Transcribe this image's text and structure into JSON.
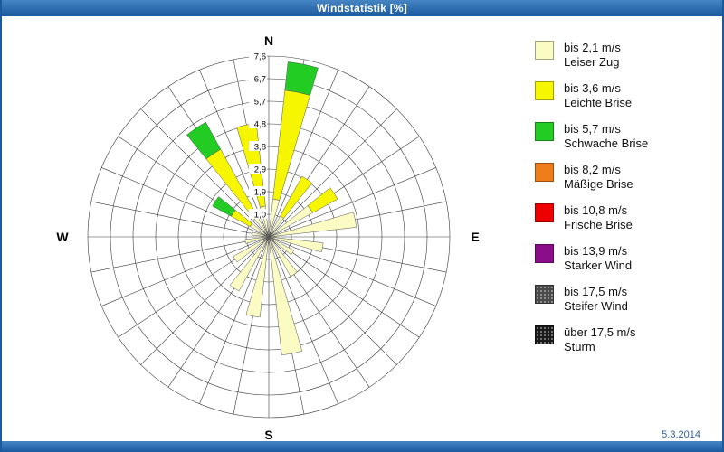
{
  "window": {
    "title": "Windstatistik [%]",
    "date": "5.3.2014"
  },
  "colors": {
    "frame_blue": "#1B5A9E",
    "date_text": "#2F5F9C",
    "grid_line": "#3A3A3A",
    "plot_background": "#FFFFFF"
  },
  "compass": {
    "north": "N",
    "south": "S",
    "west": "W",
    "east": "E"
  },
  "chart_data": {
    "type": "bar",
    "subtype": "windrose-stacked-polar",
    "unit": "%",
    "title": "Windstatistik [%]",
    "max_value": 7.6,
    "ring_values": [
      0.95,
      1.9,
      2.85,
      3.8,
      4.75,
      5.7,
      6.65,
      7.6
    ],
    "ring_labels": [
      "1,0",
      "1,9",
      "2,9",
      "3,8",
      "4,8",
      "5,7",
      "6,7",
      "7,6"
    ],
    "spoke_count": 32,
    "petal_half_width_deg": 5,
    "legend_position": "right",
    "speed_classes": [
      {
        "label": "bis 2,1 m/s",
        "name": "Leiser Zug",
        "color": "#FBFBC4"
      },
      {
        "label": "bis 3,6 m/s",
        "name": "Leichte Brise",
        "color": "#F6F600"
      },
      {
        "label": "bis 5,7 m/s",
        "name": "Schwache Brise",
        "color": "#22CC22"
      },
      {
        "label": "bis 8,2 m/s",
        "name": "Mäßige Brise",
        "color": "#EF7D1A"
      },
      {
        "label": "bis 10,8 m/s",
        "name": "Frische Brise",
        "color": "#EE0000"
      },
      {
        "label": "bis 13,9 m/s",
        "name": "Starker Wind",
        "color": "#8A0D8A"
      },
      {
        "label": "bis 17,5 m/s",
        "name": "Steifer Wind",
        "color": "#4A4A4A",
        "texture": "speckled"
      },
      {
        "label": "über 17,5 m/s",
        "name": "Sturm",
        "color": "#1A1A1A",
        "texture": "speckled"
      }
    ],
    "sectors": [
      {
        "angle_deg": 11.25,
        "values": [
          1.6,
          4.6,
          1.2,
          0,
          0,
          0,
          0,
          0
        ]
      },
      {
        "angle_deg": 33.75,
        "values": [
          1.0,
          1.9,
          0,
          0,
          0,
          0,
          0,
          0
        ]
      },
      {
        "angle_deg": 56.25,
        "values": [
          2.1,
          1.2,
          0,
          0,
          0,
          0,
          0,
          0
        ]
      },
      {
        "angle_deg": 78.75,
        "values": [
          3.7,
          0,
          0,
          0,
          0,
          0,
          0,
          0
        ]
      },
      {
        "angle_deg": 101.25,
        "values": [
          2.3,
          0,
          0,
          0,
          0,
          0,
          0,
          0
        ]
      },
      {
        "angle_deg": 123.75,
        "values": [
          1.2,
          0,
          0,
          0,
          0,
          0,
          0,
          0
        ]
      },
      {
        "angle_deg": 146.25,
        "values": [
          1.9,
          0,
          0,
          0,
          0,
          0,
          0,
          0
        ]
      },
      {
        "angle_deg": 168.75,
        "values": [
          5.0,
          0,
          0,
          0,
          0,
          0,
          0,
          0
        ]
      },
      {
        "angle_deg": 191.25,
        "values": [
          3.4,
          0,
          0,
          0,
          0,
          0,
          0,
          0
        ]
      },
      {
        "angle_deg": 213.75,
        "values": [
          2.6,
          0,
          0,
          0,
          0,
          0,
          0,
          0
        ]
      },
      {
        "angle_deg": 236.25,
        "values": [
          1.7,
          0,
          0,
          0,
          0,
          0,
          0,
          0
        ]
      },
      {
        "angle_deg": 258.75,
        "values": [
          1.0,
          0,
          0,
          0,
          0,
          0,
          0,
          0
        ]
      },
      {
        "angle_deg": 281.25,
        "values": [
          0.7,
          0,
          0,
          0,
          0,
          0,
          0,
          0
        ]
      },
      {
        "angle_deg": 303.75,
        "values": [
          0.9,
          0.9,
          0.9,
          0,
          0,
          0,
          0,
          0
        ]
      },
      {
        "angle_deg": 326.25,
        "values": [
          1.1,
          3.1,
          1.3,
          0,
          0,
          0,
          0,
          0
        ]
      },
      {
        "angle_deg": 348.75,
        "values": [
          1.3,
          3.5,
          0,
          0,
          0,
          0,
          0,
          0
        ]
      }
    ]
  }
}
